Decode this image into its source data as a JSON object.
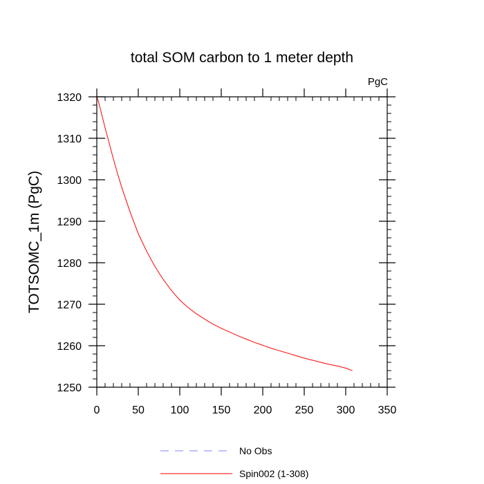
{
  "chart_data": {
    "type": "line",
    "title": "total SOM carbon to 1 meter depth",
    "units_label": "PgC",
    "xlabel": "",
    "ylabel": "TOTSOMC_1m  (PgC)",
    "xlim": [
      0,
      350
    ],
    "ylim": [
      1250,
      1320
    ],
    "x_ticks": [
      0,
      50,
      100,
      150,
      200,
      250,
      300,
      350
    ],
    "y_ticks": [
      1250,
      1260,
      1270,
      1280,
      1290,
      1300,
      1310,
      1320
    ],
    "x_minor_step": 10,
    "y_minor_step": 2,
    "grid": false,
    "legend_position": "bottom",
    "series": [
      {
        "name": "No Obs",
        "color": "#8080ff",
        "style": "dashed",
        "x": [],
        "values": []
      },
      {
        "name": "Spin002 (1-308)",
        "color": "#ff0000",
        "style": "solid",
        "x": [
          0,
          2,
          5,
          10,
          15,
          20,
          25,
          30,
          40,
          50,
          60,
          70,
          80,
          90,
          100,
          110,
          120,
          130,
          140,
          150,
          160,
          170,
          180,
          190,
          200,
          210,
          220,
          230,
          240,
          250,
          260,
          270,
          280,
          290,
          300,
          308
        ],
        "values": [
          1320.0,
          1318.9,
          1316.5,
          1312.5,
          1308.8,
          1305.0,
          1301.5,
          1298.2,
          1292.3,
          1287.0,
          1282.8,
          1279.1,
          1276.0,
          1273.3,
          1271.0,
          1269.2,
          1267.7,
          1266.4,
          1265.2,
          1264.2,
          1263.3,
          1262.4,
          1261.6,
          1260.8,
          1260.1,
          1259.4,
          1258.8,
          1258.2,
          1257.6,
          1257.0,
          1256.5,
          1256.0,
          1255.5,
          1255.1,
          1254.6,
          1254.0
        ]
      }
    ]
  }
}
